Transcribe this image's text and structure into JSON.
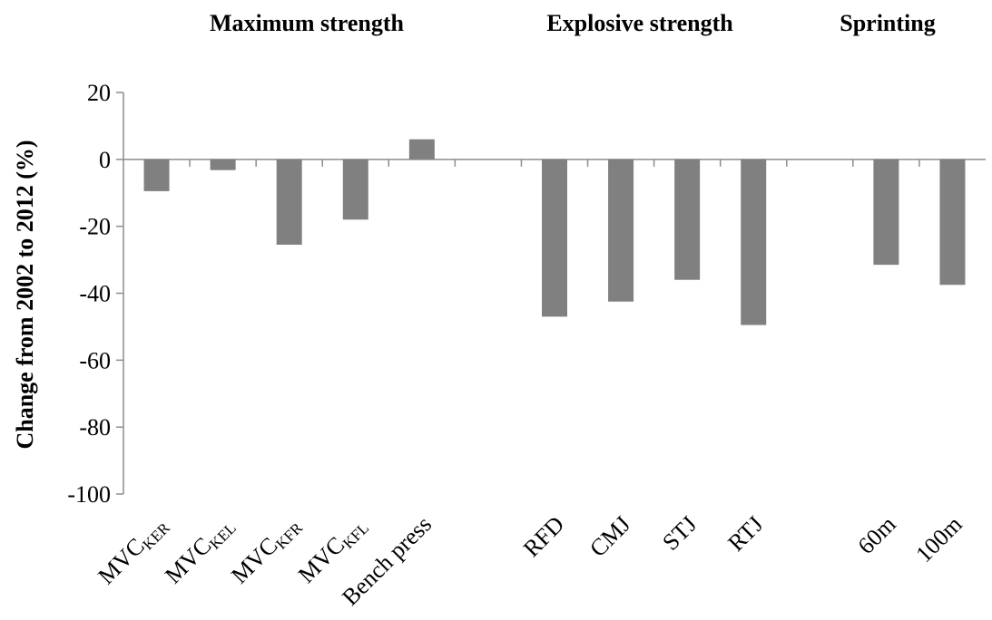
{
  "chart_data": {
    "type": "bar",
    "ylabel": "Change from 2002  to 2012 (%)",
    "ylim": [
      -100,
      20
    ],
    "yticks": [
      "20",
      "0",
      "-20",
      "-40",
      "-60",
      "-80",
      "-100"
    ],
    "bar_color": "#808080",
    "groups": [
      {
        "title": "Maximum strength",
        "categories": [
          {
            "label": "MVC",
            "sub": "KER",
            "value": -9.5
          },
          {
            "label": "MVC",
            "sub": "KEL",
            "value": -3.2
          },
          {
            "label": "MVC",
            "sub": "KFR",
            "value": -25.5
          },
          {
            "label": "MVC",
            "sub": "KFL",
            "value": -18.0
          },
          {
            "label": "Bench press",
            "sub": "",
            "value": 6.0
          }
        ]
      },
      {
        "title": "Explosive strength",
        "categories": [
          {
            "label": "RFD",
            "sub": "",
            "value": -47.0
          },
          {
            "label": "CMJ",
            "sub": "",
            "value": -42.5
          },
          {
            "label": "STJ",
            "sub": "",
            "value": -36.0
          },
          {
            "label": "RTJ",
            "sub": "",
            "value": -49.5
          }
        ]
      },
      {
        "title": "Sprinting",
        "categories": [
          {
            "label": "60m",
            "sub": "",
            "value": -31.5
          },
          {
            "label": "100m",
            "sub": "",
            "value": -37.5
          }
        ]
      }
    ]
  }
}
